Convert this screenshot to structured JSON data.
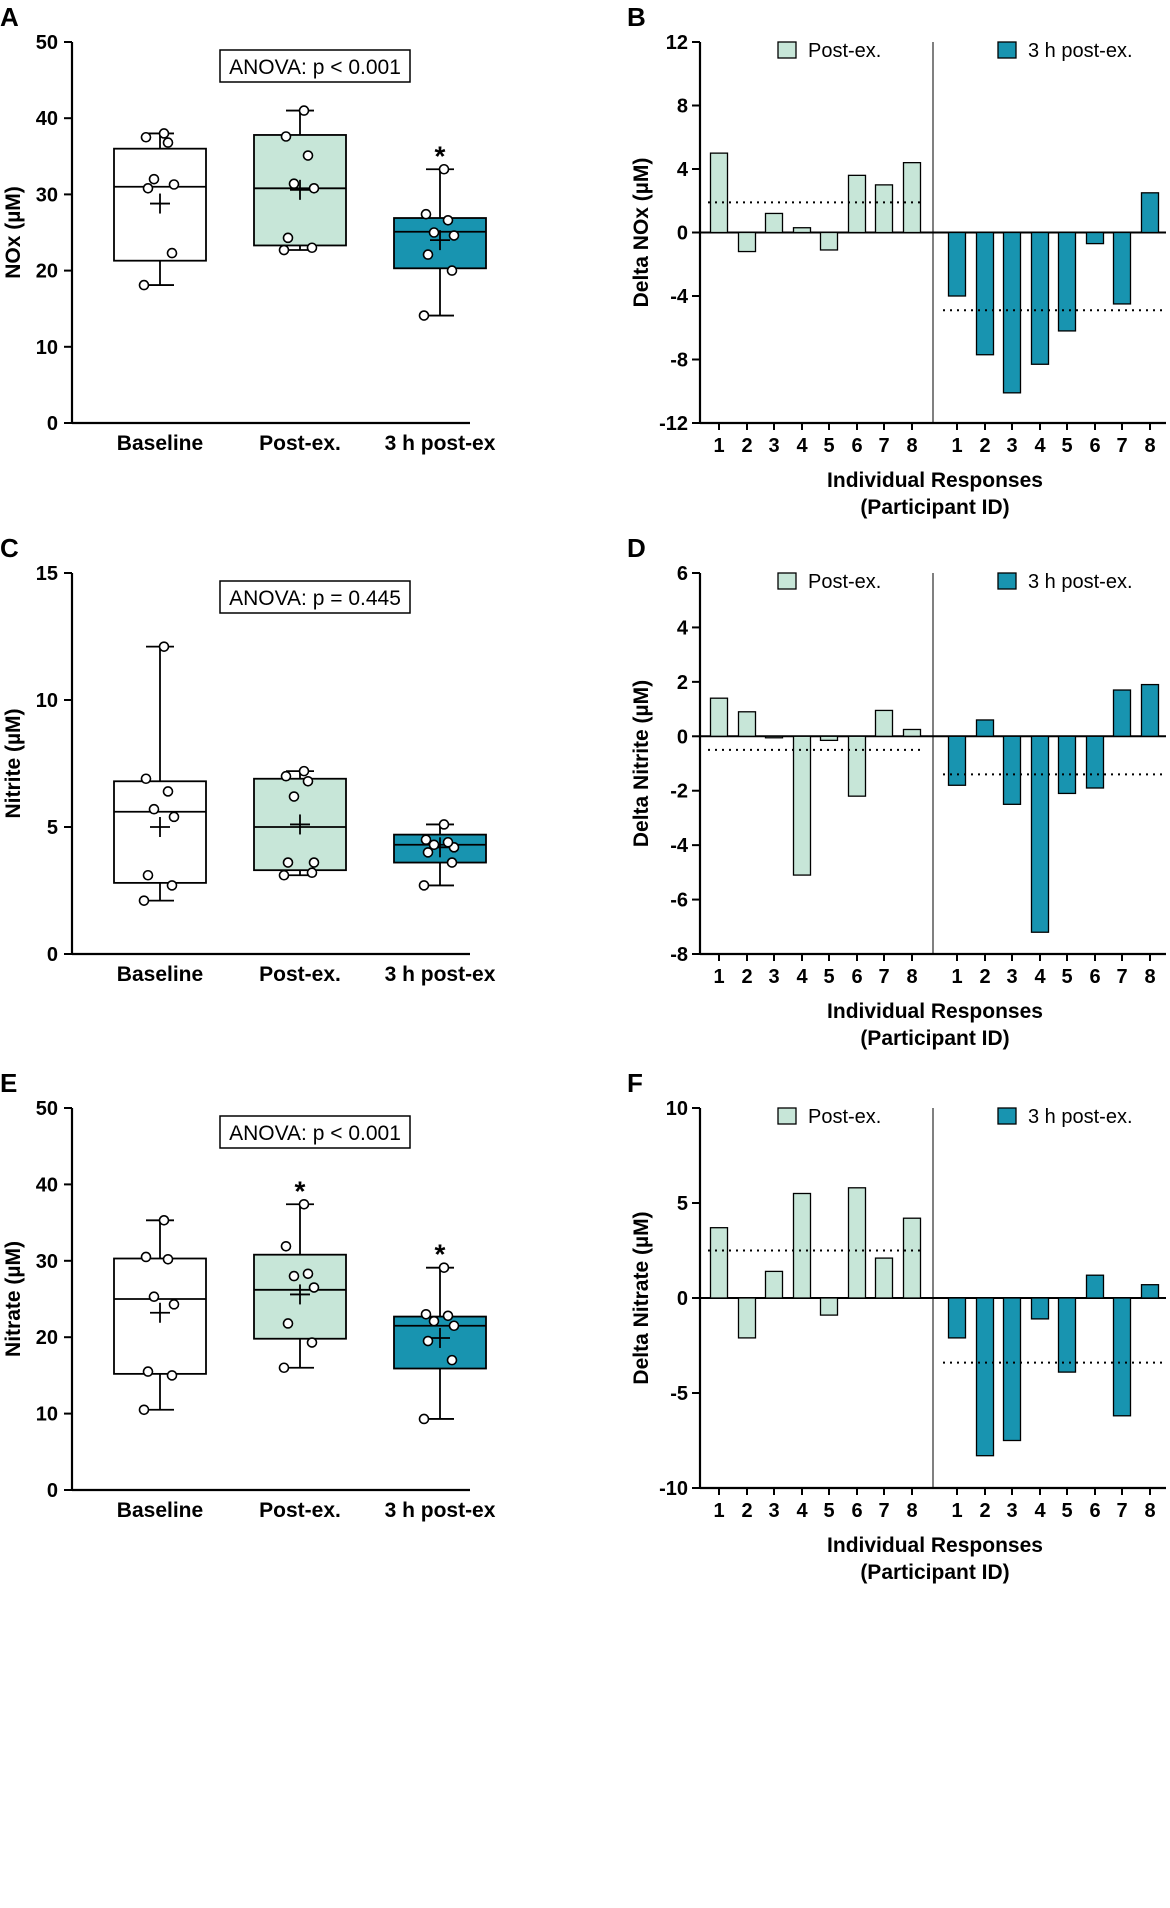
{
  "colors": {
    "baseline_fill": "#ffffff",
    "post_fill": "#c7e6d8",
    "post3h_fill": "#1894b0",
    "line": "#000000"
  },
  "chart_data": [
    {
      "panel": "A",
      "type": "box",
      "ylabel": "NOx (µM)",
      "ylim": [
        0,
        50
      ],
      "yticks": [
        0,
        10,
        20,
        30,
        40,
        50
      ],
      "annotation": "ANOVA: p < 0.001",
      "categories": [
        "Baseline",
        "Post-ex.",
        "3 h post-ex"
      ],
      "boxes": [
        {
          "name": "Baseline",
          "min": 18.1,
          "q1": 21.3,
          "median": 31.0,
          "q3": 36.0,
          "max": 38.0,
          "mean": 28.8,
          "points": [
            18.1,
            22.3,
            30.8,
            31.3,
            32.0,
            36.8,
            37.5,
            38.0
          ],
          "star": false
        },
        {
          "name": "Post-ex.",
          "min": 22.7,
          "q1": 23.3,
          "median": 30.8,
          "q3": 37.8,
          "max": 41.0,
          "mean": 30.6,
          "points": [
            22.7,
            23.0,
            24.3,
            30.8,
            31.4,
            35.1,
            37.6,
            41.0
          ],
          "star": false
        },
        {
          "name": "3 h post-ex",
          "min": 14.1,
          "q1": 20.3,
          "median": 25.1,
          "q3": 26.9,
          "max": 33.3,
          "mean": 24.0,
          "points": [
            14.1,
            20.0,
            22.1,
            24.6,
            25.0,
            26.6,
            27.4,
            33.3
          ],
          "star": true
        }
      ]
    },
    {
      "panel": "B",
      "type": "bar",
      "ylabel": "Delta NOx (µM)",
      "ylim": [
        -12,
        12
      ],
      "yticks": [
        -12,
        -8,
        -4,
        0,
        4,
        8,
        12
      ],
      "xlabel": [
        "Individual Responses",
        "(Participant ID)"
      ],
      "categories": [
        "1",
        "2",
        "3",
        "4",
        "5",
        "6",
        "7",
        "8"
      ],
      "series": [
        {
          "name": "Post-ex.",
          "values": [
            5.0,
            -1.2,
            1.2,
            0.3,
            -1.1,
            3.6,
            3.0,
            4.4
          ],
          "mean": 1.9
        },
        {
          "name": "3 h post-ex.",
          "values": [
            -4.0,
            -7.7,
            -10.1,
            -8.3,
            -6.2,
            -0.7,
            -4.5,
            2.5
          ],
          "mean": -4.9
        }
      ]
    },
    {
      "panel": "C",
      "type": "box",
      "ylabel": "Nitrite (µM)",
      "ylim": [
        0,
        15
      ],
      "yticks": [
        0,
        5,
        10,
        15
      ],
      "annotation": "ANOVA: p = 0.445",
      "categories": [
        "Baseline",
        "Post-ex.",
        "3 h post-ex"
      ],
      "boxes": [
        {
          "name": "Baseline",
          "min": 2.1,
          "q1": 2.8,
          "median": 5.6,
          "q3": 6.8,
          "max": 12.1,
          "mean": 5.0,
          "points": [
            2.1,
            2.7,
            3.1,
            5.4,
            5.7,
            6.4,
            6.9,
            12.1
          ],
          "star": false
        },
        {
          "name": "Post-ex.",
          "min": 3.1,
          "q1": 3.3,
          "median": 5.0,
          "q3": 6.9,
          "max": 7.2,
          "mean": 5.1,
          "points": [
            3.1,
            3.2,
            3.6,
            3.6,
            6.2,
            6.8,
            7.0,
            7.2
          ],
          "star": false
        },
        {
          "name": "3 h post-ex",
          "min": 2.7,
          "q1": 3.6,
          "median": 4.3,
          "q3": 4.7,
          "max": 5.1,
          "mean": 4.2,
          "points": [
            2.7,
            3.6,
            4.0,
            4.2,
            4.3,
            4.4,
            4.5,
            5.1
          ],
          "star": false
        }
      ]
    },
    {
      "panel": "D",
      "type": "bar",
      "ylabel": "Delta Nitrite (µM)",
      "ylim": [
        -8,
        6
      ],
      "yticks": [
        -8,
        -6,
        -4,
        -2,
        0,
        2,
        4,
        6
      ],
      "xlabel": [
        "Individual Responses",
        "(Participant ID)"
      ],
      "categories": [
        "1",
        "2",
        "3",
        "4",
        "5",
        "6",
        "7",
        "8"
      ],
      "series": [
        {
          "name": "Post-ex.",
          "values": [
            1.4,
            0.9,
            -0.05,
            -5.1,
            -0.15,
            -2.2,
            0.95,
            0.25
          ],
          "mean": -0.5
        },
        {
          "name": "3 h post-ex.",
          "values": [
            -1.8,
            0.6,
            -2.5,
            -7.2,
            -2.1,
            -1.9,
            1.7,
            1.9
          ],
          "mean": -1.4
        }
      ]
    },
    {
      "panel": "E",
      "type": "box",
      "ylabel": "Nitrate (µM)",
      "ylim": [
        0,
        50
      ],
      "yticks": [
        0,
        10,
        20,
        30,
        40,
        50
      ],
      "annotation": "ANOVA: p < 0.001",
      "categories": [
        "Baseline",
        "Post-ex.",
        "3 h post-ex"
      ],
      "boxes": [
        {
          "name": "Baseline",
          "min": 10.5,
          "q1": 15.2,
          "median": 25.0,
          "q3": 30.3,
          "max": 35.3,
          "mean": 23.2,
          "points": [
            10.5,
            15.0,
            15.5,
            24.3,
            25.3,
            30.2,
            30.5,
            35.3
          ],
          "star": false
        },
        {
          "name": "Post-ex.",
          "min": 16.0,
          "q1": 19.8,
          "median": 26.2,
          "q3": 30.8,
          "max": 37.4,
          "mean": 25.6,
          "points": [
            16.0,
            19.3,
            21.8,
            26.5,
            28.0,
            28.3,
            31.9,
            37.4
          ],
          "star": true
        },
        {
          "name": "3 h post-ex",
          "min": 9.3,
          "q1": 15.9,
          "median": 21.5,
          "q3": 22.7,
          "max": 29.1,
          "mean": 19.9,
          "points": [
            9.3,
            17.0,
            19.5,
            21.5,
            22.1,
            22.8,
            23.0,
            29.1
          ],
          "star": true
        }
      ]
    },
    {
      "panel": "F",
      "type": "bar",
      "ylabel": "Delta Nitrate (µM)",
      "ylim": [
        -10,
        10
      ],
      "yticks": [
        -10,
        -5,
        0,
        5,
        10
      ],
      "xlabel": [
        "Individual Responses",
        "(Participant ID)"
      ],
      "categories": [
        "1",
        "2",
        "3",
        "4",
        "5",
        "6",
        "7",
        "8"
      ],
      "series": [
        {
          "name": "Post-ex.",
          "values": [
            3.7,
            -2.1,
            1.4,
            5.5,
            -0.9,
            5.8,
            2.1,
            4.2
          ],
          "mean": 2.5
        },
        {
          "name": "3 h post-ex.",
          "values": [
            -2.1,
            -8.3,
            -7.5,
            -1.1,
            -3.9,
            1.2,
            -6.2,
            0.7
          ],
          "mean": -3.4
        }
      ]
    }
  ]
}
